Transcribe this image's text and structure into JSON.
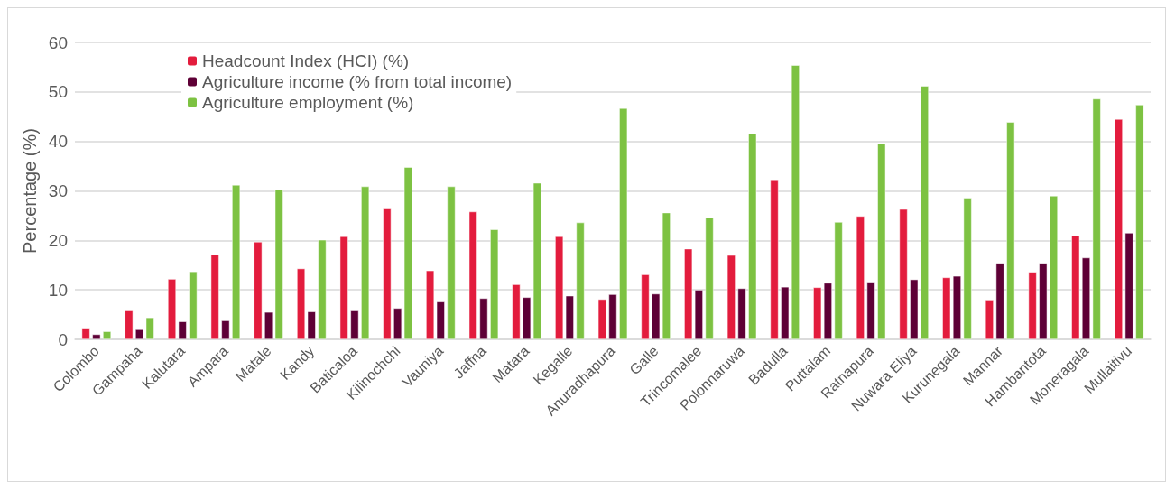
{
  "chart_data": {
    "type": "bar",
    "ylabel": "Percentage (%)",
    "categories": [
      "Colombo",
      "Gampaha",
      "Kalutara",
      "Ampara",
      "Matale",
      "Kandy",
      "Baticaloa",
      "Kilinochchi",
      "Vauniya",
      "Jaffna",
      "Matara",
      "Kegalle",
      "Anuradhapura",
      "Galle",
      "Trincomalee",
      "Polonnaruwa",
      "Badulla",
      "Puttalam",
      "Ratnapura",
      "Nuwara Eliya",
      "Kurunegala",
      "Mannar",
      "Hambantota",
      "Moneragala",
      "Mullaitivu"
    ],
    "series": [
      {
        "name": "Headcount Index (HCI) (%)",
        "color": "#e31c3d",
        "values": [
          2.3,
          5.8,
          12.2,
          17.2,
          19.7,
          14.3,
          20.8,
          26.4,
          13.9,
          25.8,
          11.1,
          20.8,
          8.1,
          13.1,
          18.3,
          17.0,
          32.3,
          10.5,
          24.9,
          26.3,
          12.5,
          8.0,
          13.6,
          21.0,
          44.5
        ]
      },
      {
        "name": "Agriculture income (% from total income)",
        "color": "#5e0036",
        "values": [
          1.0,
          2.0,
          3.6,
          3.8,
          5.5,
          5.6,
          5.8,
          6.3,
          7.6,
          8.3,
          8.5,
          8.8,
          9.1,
          9.2,
          10.0,
          10.3,
          10.6,
          11.4,
          11.6,
          12.1,
          12.8,
          15.4,
          15.4,
          16.5,
          21.5
        ]
      },
      {
        "name": "Agriculture employment (%)",
        "color": "#7dc242",
        "values": [
          1.6,
          4.4,
          13.7,
          31.2,
          30.3,
          20.1,
          30.9,
          34.8,
          30.9,
          22.2,
          31.6,
          23.6,
          46.7,
          25.6,
          24.6,
          41.6,
          55.4,
          23.7,
          39.6,
          51.2,
          28.6,
          43.9,
          29.0,
          48.6,
          47.4
        ]
      }
    ],
    "ylim": [
      0,
      60
    ],
    "yticks": [
      0,
      10,
      20,
      30,
      40,
      50,
      60
    ],
    "grid": "y",
    "legend": "top left"
  }
}
